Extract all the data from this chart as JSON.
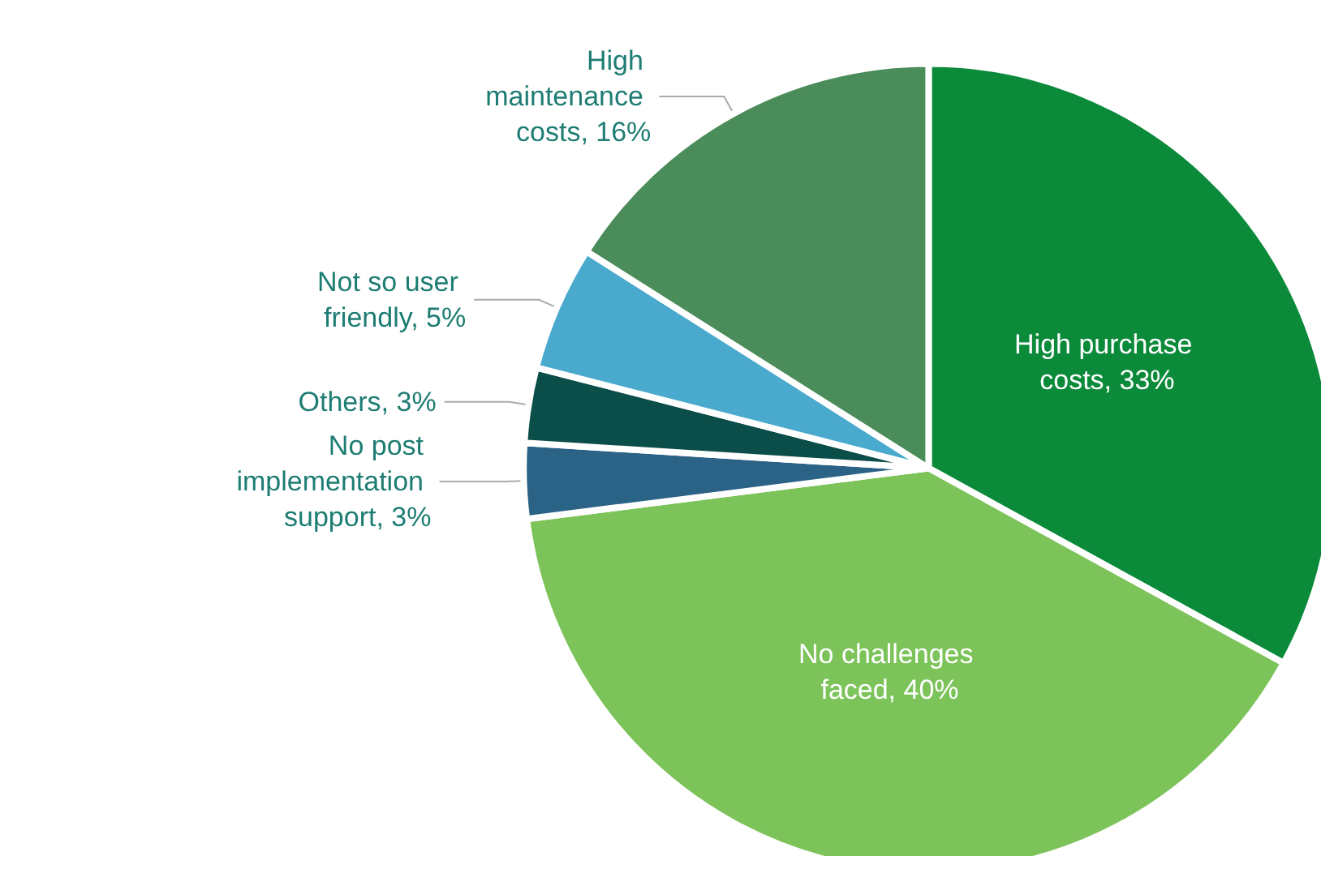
{
  "chart_data": {
    "type": "pie",
    "categories": [
      "High purchase costs",
      "No challenges faced",
      "No post implementation support",
      "Others",
      "Not so user friendly",
      "High maintenance costs"
    ],
    "values": [
      33,
      40,
      3,
      3,
      5,
      16
    ],
    "value_labels": [
      "33%",
      "40%",
      "3%",
      "3%",
      "5%",
      "16%"
    ],
    "colors": [
      "#0b8a3a",
      "#7cc35a",
      "#2b6386",
      "#0b4d48",
      "#4aaace",
      "#4a8c5a"
    ],
    "legend": false
  }
}
